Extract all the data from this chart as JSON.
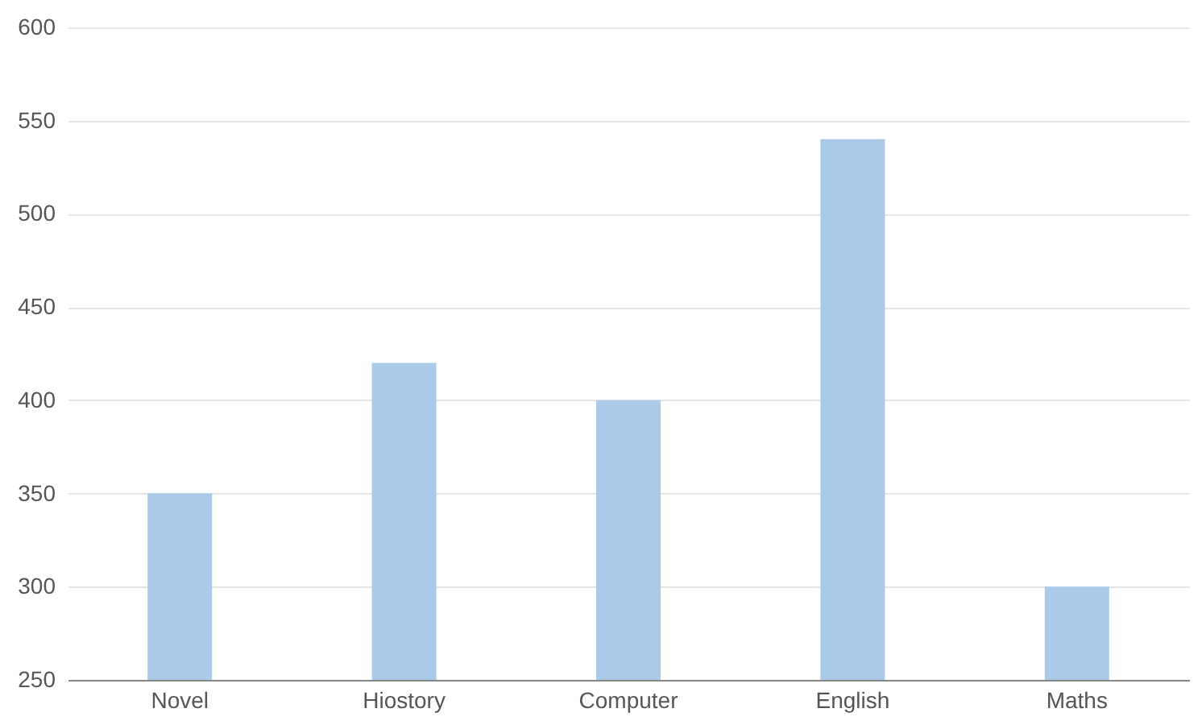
{
  "chart_data": {
    "type": "bar",
    "categories": [
      "Novel",
      "Hiostory",
      "Computer",
      "English",
      "Maths"
    ],
    "values": [
      350,
      420,
      400,
      540,
      300
    ],
    "color": "#a9cbe9",
    "ylim": [
      250,
      600
    ],
    "yticks": [
      250,
      300,
      350,
      400,
      450,
      500,
      550,
      600
    ],
    "grid": "y"
  }
}
